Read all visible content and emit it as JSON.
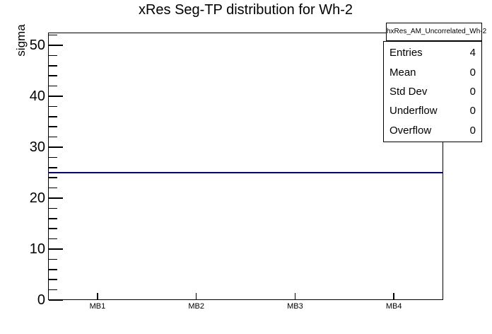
{
  "page": {
    "background": "#ffffff",
    "text_color": "#000000"
  },
  "chart_data": {
    "type": "line",
    "title": "xRes Seg-TP distribution for Wh-2",
    "xlabel": "",
    "ylabel": "sigma",
    "categories": [
      "MB1",
      "MB2",
      "MB3",
      "MB4"
    ],
    "values": [
      25,
      25,
      25,
      25
    ],
    "ylim": [
      0,
      52.5
    ],
    "y_major_ticks": [
      0,
      10,
      20,
      30,
      40,
      50
    ],
    "y_minor_tick_step": 2,
    "grid": false,
    "legend_position": "top-right-stats-box",
    "line_color": "#000099",
    "axis_color": "#000000"
  },
  "stats_box": {
    "header": "hxRes_AM_Uncorrelated_Wh-2",
    "rows": [
      {
        "label": "Entries",
        "value": "4"
      },
      {
        "label": "Mean",
        "value": "0"
      },
      {
        "label": "Std Dev",
        "value": "0"
      },
      {
        "label": "Underflow",
        "value": "0"
      },
      {
        "label": "Overflow",
        "value": "0"
      }
    ]
  }
}
